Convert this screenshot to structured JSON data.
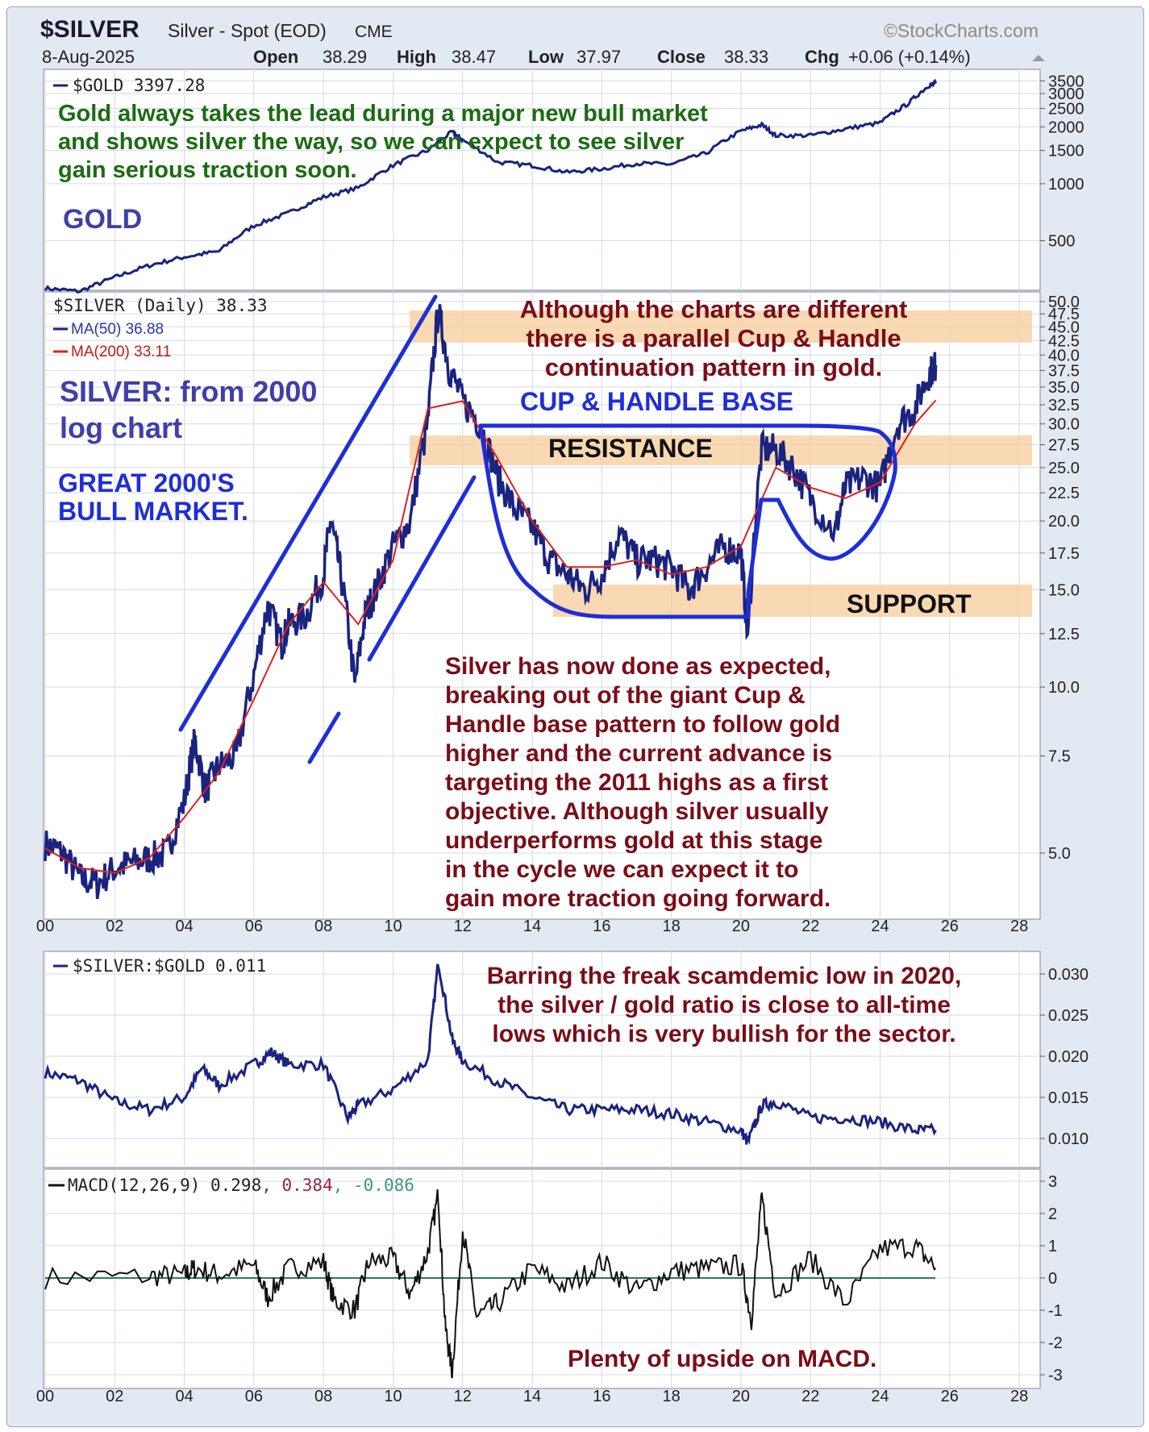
{
  "header": {
    "symbol": "$SILVER",
    "name": "Silver - Spot (EOD)",
    "exchange": "CME",
    "source": "©StockCharts.com",
    "date": "8-Aug-2025",
    "open_label": "Open",
    "open": "38.29",
    "high_label": "High",
    "high": "38.47",
    "low_label": "Low",
    "low": "37.97",
    "close_label": "Close",
    "close": "38.33",
    "chg_label": "Chg",
    "chg": "+0.06 (+0.14%)"
  },
  "x_tick_labels": [
    "00",
    "02",
    "04",
    "06",
    "08",
    "10",
    "12",
    "14",
    "16",
    "18",
    "20",
    "22",
    "24",
    "26",
    "28"
  ],
  "colors": {
    "price": "#1a237e",
    "ma200": "#e02020",
    "drawn_line": "#1f2ed6",
    "band": "#f8cfa0",
    "annotation_green": "#1b6b12",
    "annotation_blue": "#3f3fa8",
    "annotation_red": "#7a0d18",
    "background": "#e3e9f3",
    "panel": "#ffffff",
    "grid": "#d4dae6"
  },
  "chart_data": [
    {
      "panel": "gold",
      "type": "line",
      "legend": "$GOLD 3397.28",
      "y_scale": "log",
      "y_ticks": [
        "3500",
        "3000",
        "2500",
        "2000",
        "1500",
        "1000",
        "500"
      ],
      "series": [
        {
          "name": "$GOLD",
          "x": [
            2000,
            2001,
            2002,
            2003,
            2004,
            2005,
            2006,
            2007,
            2008,
            2009,
            2010,
            2011,
            2011.7,
            2012,
            2013,
            2014,
            2015,
            2016,
            2017,
            2018,
            2019,
            2020,
            2020.6,
            2021,
            2022,
            2023,
            2024,
            2024.8,
            2025.4,
            2025.6
          ],
          "y": [
            280,
            270,
            320,
            370,
            410,
            440,
            600,
            700,
            850,
            950,
            1250,
            1500,
            1880,
            1700,
            1300,
            1250,
            1150,
            1200,
            1280,
            1270,
            1450,
            1900,
            2050,
            1800,
            1800,
            1950,
            2100,
            2650,
            3300,
            3397
          ]
        }
      ],
      "annotations": {
        "green_text": [
          "Gold always takes the lead during a major new bull market",
          "and shows silver the way, so we can expect to see silver",
          "gain serious traction soon."
        ],
        "label": "GOLD"
      }
    },
    {
      "panel": "silver",
      "type": "line",
      "legend": "$SILVER (Daily) 38.33",
      "ma50": "MA(50) 36.88",
      "ma200": "MA(200) 33.11",
      "y_scale": "log",
      "y_ticks": [
        "50.0",
        "47.5",
        "45.0",
        "42.5",
        "40.0",
        "37.5",
        "35.0",
        "32.5",
        "30.0",
        "27.5",
        "25.0",
        "22.5",
        "20.0",
        "17.5",
        "15.0",
        "12.5",
        "10.0",
        "7.5",
        "5.0"
      ],
      "series": [
        {
          "name": "$SILVER",
          "x": [
            2000,
            2000.5,
            2001,
            2001.5,
            2002,
            2002.5,
            2003,
            2003.5,
            2004,
            2004.3,
            2004.6,
            2005,
            2005.5,
            2006,
            2006.4,
            2006.8,
            2007,
            2007.5,
            2008,
            2008.2,
            2008.5,
            2008.9,
            2009.2,
            2009.5,
            2010,
            2010.5,
            2011,
            2011.3,
            2011.6,
            2012,
            2012.5,
            2013,
            2013.5,
            2014,
            2014.5,
            2015,
            2015.5,
            2016,
            2016.5,
            2017,
            2017.5,
            2018,
            2018.5,
            2019,
            2019.5,
            2020,
            2020.2,
            2020.6,
            2021,
            2021.5,
            2022,
            2022.7,
            2023,
            2023.5,
            2024,
            2024.5,
            2025,
            2025.4,
            2025.6
          ],
          "y": [
            5.2,
            5.0,
            4.5,
            4.4,
            4.7,
            4.8,
            4.9,
            5.0,
            6.2,
            8.0,
            6.5,
            7.2,
            7.5,
            10.5,
            14.0,
            12.0,
            13.0,
            13.5,
            16.0,
            20.0,
            16.0,
            10.0,
            13.5,
            15.0,
            18.0,
            20.0,
            30.0,
            48.0,
            38.0,
            33.0,
            30.0,
            24.0,
            21.0,
            19.5,
            17.0,
            16.0,
            15.0,
            16.0,
            19.0,
            17.0,
            17.0,
            16.5,
            15.0,
            16.5,
            18.0,
            17.5,
            12.0,
            27.0,
            27.0,
            25.0,
            22.0,
            19.0,
            23.0,
            24.0,
            23.0,
            30.0,
            32.0,
            37.0,
            38.33
          ]
        },
        {
          "name": "MA(200)",
          "x": [
            2000,
            2001,
            2002,
            2003,
            2004,
            2005,
            2006,
            2007,
            2008,
            2009,
            2010,
            2011,
            2012,
            2013,
            2014,
            2015,
            2016,
            2017,
            2018,
            2019,
            2020,
            2021,
            2022,
            2023,
            2024,
            2025,
            2025.6
          ],
          "y": [
            5.1,
            4.7,
            4.6,
            4.9,
            5.8,
            7.0,
            9.5,
            13.0,
            15.5,
            13.0,
            17.0,
            32.0,
            33.0,
            26.0,
            20.0,
            16.5,
            16.5,
            17.0,
            16.0,
            16.5,
            18.0,
            25.0,
            23.0,
            22.0,
            23.5,
            30.0,
            33.11
          ]
        }
      ],
      "bands": [
        "RESISTANCE",
        "SUPPORT"
      ],
      "annotations": {
        "top_text": [
          "Although the charts are different",
          "there is a parallel Cup & Handle",
          "continuation pattern in gold."
        ],
        "title": [
          "SILVER: from 2000",
          "log chart"
        ],
        "bull": [
          "GREAT 2000'S",
          "BULL MARKET."
        ],
        "cup": "CUP & HANDLE BASE",
        "resistance": "RESISTANCE",
        "support": "SUPPORT",
        "body": [
          "Silver has now done as expected,",
          "breaking out of the giant Cup &",
          "Handle base pattern to follow gold",
          "higher and the current advance is",
          "targeting the 2011 highs as a first",
          "objective. Although silver usually",
          "underperforms gold at this stage",
          "in the cycle we can expect it to",
          "gain more traction going forward."
        ]
      }
    },
    {
      "panel": "ratio",
      "type": "line",
      "legend": "$SILVER:$GOLD 0.011",
      "y_ticks": [
        "0.030",
        "0.025",
        "0.020",
        "0.015",
        "0.010"
      ],
      "series": [
        {
          "name": "$SILVER:$GOLD",
          "x": [
            2000,
            2001,
            2002,
            2003,
            2004,
            2004.5,
            2005,
            2006,
            2006.5,
            2007,
            2008,
            2008.7,
            2009,
            2010,
            2011,
            2011.3,
            2011.7,
            2012,
            2013,
            2014,
            2015,
            2016,
            2017,
            2018,
            2019,
            2020,
            2020.2,
            2020.6,
            2021,
            2022,
            2023,
            2024,
            2025,
            2025.6
          ],
          "y": [
            0.018,
            0.017,
            0.0145,
            0.0135,
            0.015,
            0.0185,
            0.0165,
            0.019,
            0.0205,
            0.019,
            0.019,
            0.0125,
            0.014,
            0.016,
            0.0195,
            0.0315,
            0.022,
            0.0195,
            0.017,
            0.015,
            0.0135,
            0.0135,
            0.0135,
            0.013,
            0.012,
            0.011,
            0.0095,
            0.014,
            0.0145,
            0.0125,
            0.0125,
            0.012,
            0.011,
            0.011
          ]
        }
      ],
      "annotations": {
        "text": [
          "Barring the freak scamdemic low in 2020,",
          "the silver / gold ratio is close to all-time",
          "lows which is very bullish for the sector."
        ]
      }
    },
    {
      "panel": "macd",
      "type": "line",
      "legend_macd": "MACD(12,26,9) 0.298",
      "legend_signal": ", 0.384",
      "legend_hist": ", -0.086",
      "y_ticks": [
        "3",
        "2",
        "1",
        "0",
        "-1",
        "-2",
        "-3"
      ],
      "series": [
        {
          "name": "MACD",
          "x": [
            2000,
            2003,
            2004,
            2004.3,
            2005,
            2006,
            2006.4,
            2007,
            2008,
            2008.3,
            2008.9,
            2009.3,
            2010,
            2010.5,
            2011,
            2011.3,
            2011.5,
            2011.7,
            2012,
            2012.4,
            2013,
            2014,
            2015,
            2016,
            2017,
            2018,
            2019,
            2020,
            2020.3,
            2020.6,
            2021,
            2022,
            2023,
            2024,
            2025,
            2025.6
          ],
          "y": [
            0,
            0.05,
            0.1,
            0.3,
            0.1,
            0.4,
            -0.6,
            0.3,
            0.5,
            -0.7,
            -1.0,
            0.5,
            0.6,
            -0.5,
            0.8,
            2.6,
            -1.5,
            -2.9,
            1.5,
            -1.2,
            -0.8,
            0.3,
            -0.3,
            0.5,
            -0.4,
            0.2,
            0.3,
            0.4,
            -1.3,
            2.5,
            -0.5,
            0.6,
            -0.8,
            0.9,
            1.0,
            0.3
          ]
        }
      ],
      "annotations": {
        "text": "Plenty of upside on MACD."
      }
    }
  ]
}
